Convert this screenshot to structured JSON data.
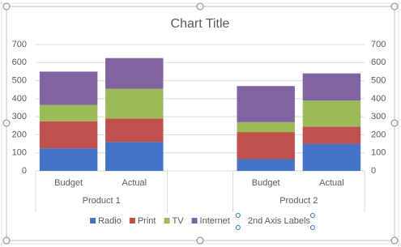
{
  "chart_data": {
    "type": "stacked-bar",
    "title": "Chart Title",
    "categories": [
      "Budget",
      "Actual",
      null,
      "Budget",
      "Actual"
    ],
    "groups": [
      {
        "label": "Product 1",
        "size": 2
      },
      {
        "label": null,
        "size": 1
      },
      {
        "label": "Product 2",
        "size": 2
      }
    ],
    "series": [
      {
        "name": "Radio",
        "color": "#4472c4",
        "values": [
          125,
          160,
          null,
          65,
          150
        ]
      },
      {
        "name": "Print",
        "color": "#c0504d",
        "values": [
          150,
          130,
          null,
          150,
          95
        ]
      },
      {
        "name": "TV",
        "color": "#9bbb59",
        "values": [
          90,
          165,
          null,
          55,
          145
        ]
      },
      {
        "name": "Internet",
        "color": "#8064a2",
        "values": [
          185,
          170,
          null,
          200,
          150
        ]
      },
      {
        "name": "2nd Axis Labels",
        "color": null,
        "axis": "y2",
        "values": [
          null,
          null,
          null,
          null,
          null
        ]
      }
    ],
    "ylim": [
      0,
      700
    ],
    "yticks": [
      0,
      100,
      200,
      300,
      400,
      500,
      600,
      700
    ],
    "y2lim": [
      0,
      700
    ],
    "y2ticks": [
      0,
      100,
      200,
      300,
      400,
      500,
      600,
      700
    ],
    "grid": true,
    "legend": "bottom"
  }
}
